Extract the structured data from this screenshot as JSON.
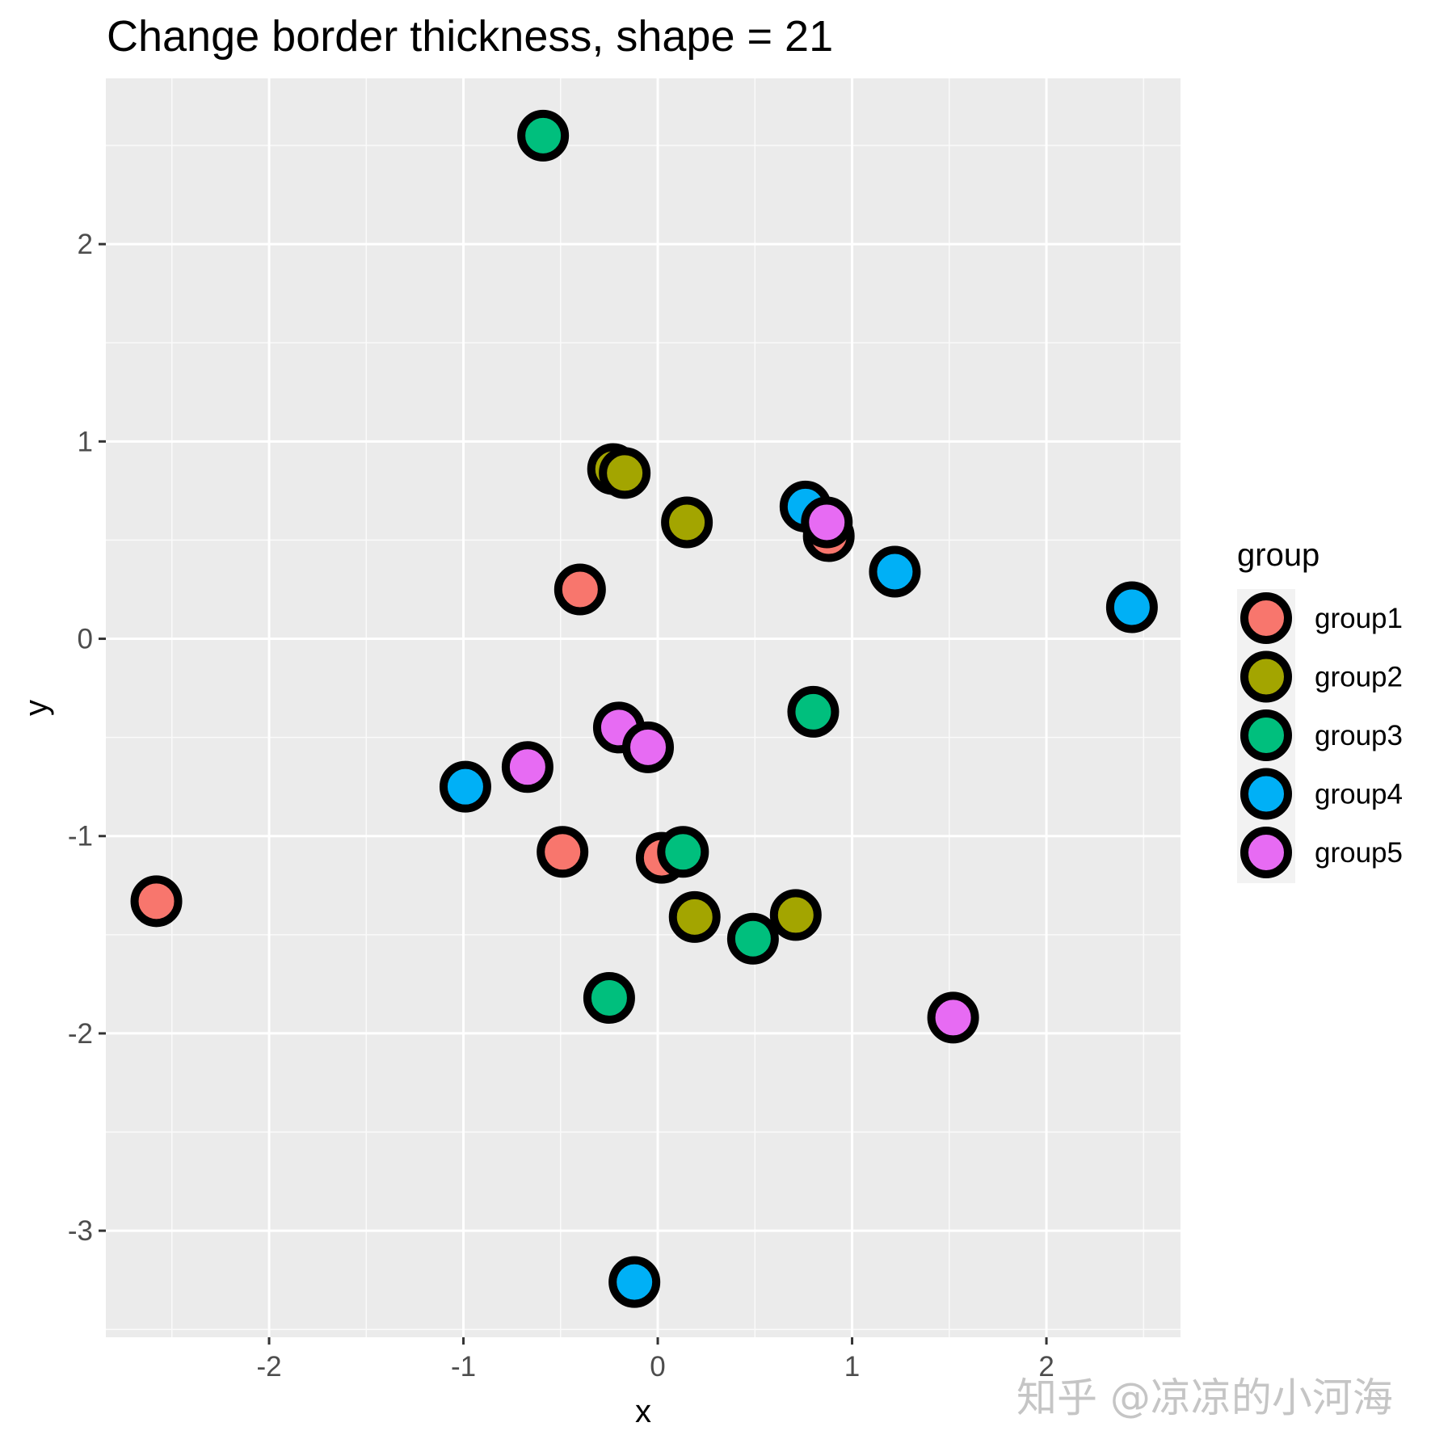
{
  "chart_data": {
    "type": "scatter",
    "title": "Change border thickness, shape = 21",
    "xlabel": "x",
    "ylabel": "y",
    "xlim": [
      -2.84,
      2.69
    ],
    "ylim": [
      -3.54,
      2.84
    ],
    "x_ticks": [
      -2,
      -1,
      0,
      1,
      2
    ],
    "y_ticks": [
      2,
      1,
      0,
      -1,
      -2,
      -3
    ],
    "x_tick_labels": [
      "-2",
      "-1",
      "0",
      "1",
      "2"
    ],
    "y_tick_labels": [
      "2",
      "1",
      "0",
      "-1",
      "-2",
      "-3"
    ],
    "grid": true,
    "legend_position": "right",
    "legend_title": "group",
    "marker": {
      "shape": 21,
      "stroke_color": "#000000",
      "border": "thick"
    },
    "series": [
      {
        "name": "group1",
        "color": "#F8766D",
        "points": [
          [
            -2.58,
            -1.33
          ],
          [
            -0.4,
            0.25
          ],
          [
            -0.49,
            -1.08
          ],
          [
            0.02,
            -1.11
          ],
          [
            0.88,
            0.52
          ]
        ]
      },
      {
        "name": "group2",
        "color": "#A3A500",
        "points": [
          [
            -0.23,
            0.86
          ],
          [
            -0.17,
            0.84
          ],
          [
            0.15,
            0.59
          ],
          [
            0.19,
            -1.41
          ],
          [
            0.71,
            -1.4
          ]
        ]
      },
      {
        "name": "group3",
        "color": "#00BF7D",
        "points": [
          [
            -0.59,
            2.55
          ],
          [
            0.8,
            -0.37
          ],
          [
            0.13,
            -1.08
          ],
          [
            0.49,
            -1.52
          ],
          [
            -0.25,
            -1.82
          ]
        ]
      },
      {
        "name": "group4",
        "color": "#00B0F6",
        "points": [
          [
            2.44,
            0.16
          ],
          [
            1.22,
            0.34
          ],
          [
            0.76,
            0.67
          ],
          [
            -0.99,
            -0.75
          ],
          [
            -0.12,
            -3.26
          ]
        ]
      },
      {
        "name": "group5",
        "color": "#E76BF3",
        "points": [
          [
            0.87,
            0.59
          ],
          [
            -0.2,
            -0.45
          ],
          [
            -0.05,
            -0.55
          ],
          [
            -0.67,
            -0.65
          ],
          [
            1.52,
            -1.92
          ]
        ]
      }
    ]
  },
  "watermark": "知乎 @凉凉的小河海"
}
